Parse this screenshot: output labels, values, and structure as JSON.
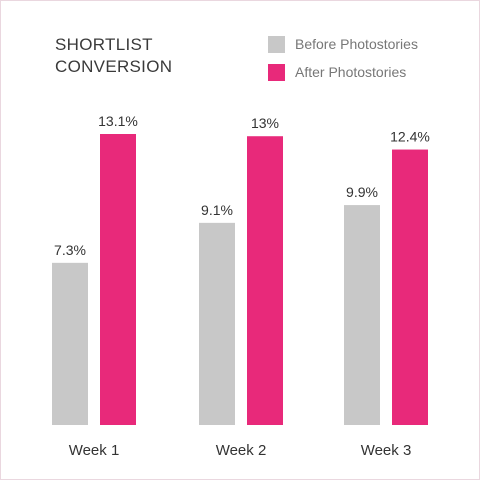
{
  "chart_data": {
    "type": "bar",
    "title_lines": [
      "SHORTLIST",
      "CONVERSION"
    ],
    "categories": [
      "Week 1",
      "Week 2",
      "Week 3"
    ],
    "series": [
      {
        "name": "Before Photostories",
        "values": [
          7.3,
          9.1,
          9.9
        ],
        "labels": [
          "7.3%",
          "9.1%",
          "9.9%"
        ],
        "color": "#c8c8c8"
      },
      {
        "name": "After Photostories",
        "values": [
          13.1,
          13.0,
          12.4
        ],
        "labels": [
          "13.1%",
          "13%",
          "12.4%"
        ],
        "color": "#e8297a"
      }
    ],
    "ylim": [
      0,
      13.1
    ],
    "grid": false,
    "legend_position": "top-right",
    "xlabel": "",
    "ylabel": ""
  }
}
